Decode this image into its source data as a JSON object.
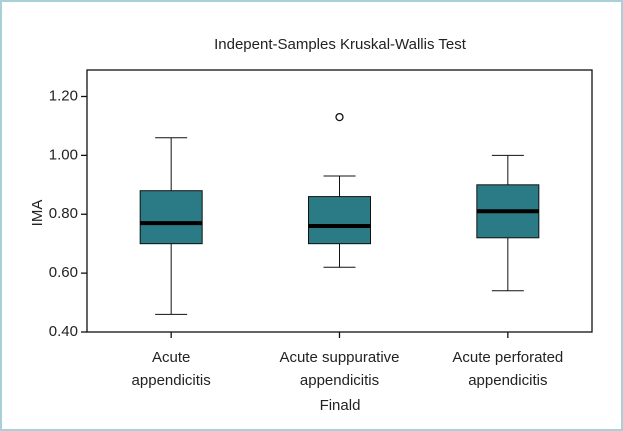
{
  "chart_data": {
    "type": "box",
    "title": "Indepent-Samples Kruskal-Wallis Test",
    "x_label": "Finald",
    "y_label": "IMA",
    "categories": [
      [
        "Acute",
        "appendicitis"
      ],
      [
        "Acute suppurative",
        "appendicitis"
      ],
      [
        "Acute perforated",
        "appendicitis"
      ]
    ],
    "boxes": [
      {
        "min": 0.46,
        "q1": 0.7,
        "median": 0.77,
        "q3": 0.88,
        "max": 1.06,
        "outliers": []
      },
      {
        "min": 0.62,
        "q1": 0.7,
        "median": 0.76,
        "q3": 0.86,
        "max": 0.93,
        "outliers": [
          1.13
        ]
      },
      {
        "min": 0.54,
        "q1": 0.72,
        "median": 0.81,
        "q3": 0.9,
        "max": 1.0,
        "outliers": []
      }
    ],
    "color": "#2a7b86",
    "ylim": [
      0.4,
      1.29
    ],
    "yticks": [
      {
        "value": 0.4,
        "label": "0.40"
      },
      {
        "value": 0.6,
        "label": "0.60"
      },
      {
        "value": 0.8,
        "label": "0.80"
      },
      {
        "value": 1.0,
        "label": "1.00"
      },
      {
        "value": 1.2,
        "label": "1.20"
      }
    ]
  }
}
